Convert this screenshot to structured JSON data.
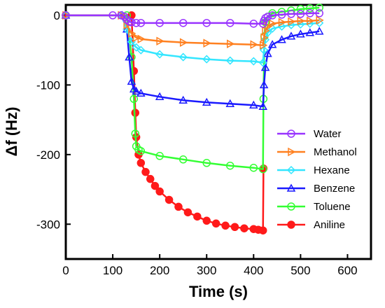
{
  "chart_data": {
    "type": "line",
    "xlabel": "Time (s)",
    "ylabel": "Δf (Hz)",
    "xlim": [
      0,
      650
    ],
    "ylim": [
      -350,
      15
    ],
    "x_ticks": [
      0,
      100,
      200,
      300,
      400,
      500,
      600
    ],
    "y_ticks": [
      0,
      -100,
      -200,
      -300
    ],
    "grid": false,
    "legend_position": "bottom-right",
    "series": [
      {
        "name": "Water",
        "color": "#9933ff",
        "marker": "circle-open",
        "x": [
          0,
          50,
          100,
          118,
          125,
          130,
          135,
          140,
          150,
          160,
          200,
          250,
          300,
          350,
          400,
          420,
          422,
          425,
          430,
          440,
          460,
          480,
          500,
          520,
          540
        ],
        "y": [
          0,
          0,
          0,
          0,
          -2,
          -6,
          -9,
          -10,
          -11,
          -11,
          -11,
          -11,
          -11,
          -11,
          -12,
          -12,
          -8,
          -4,
          -2,
          0,
          1,
          2,
          2,
          3,
          3
        ]
      },
      {
        "name": "Methanol",
        "color": "#ff8020",
        "marker": "triangle-right-open",
        "x": [
          0,
          100,
          118,
          130,
          140,
          150,
          160,
          200,
          250,
          300,
          350,
          400,
          420,
          422,
          425,
          430,
          440,
          460,
          480,
          500,
          520,
          540
        ],
        "y": [
          0,
          0,
          0,
          -14,
          -26,
          -32,
          -34,
          -37,
          -39,
          -40,
          -41,
          -42,
          -43,
          -32,
          -22,
          -16,
          -12,
          -10,
          -9,
          -8,
          -8,
          -7
        ]
      },
      {
        "name": "Hexane",
        "color": "#33e6ff",
        "marker": "diamond-open",
        "x": [
          0,
          100,
          118,
          130,
          140,
          150,
          160,
          200,
          250,
          300,
          350,
          400,
          420,
          422,
          425,
          430,
          440,
          460,
          480,
          500,
          520,
          540
        ],
        "y": [
          0,
          0,
          0,
          -20,
          -38,
          -46,
          -50,
          -56,
          -60,
          -63,
          -65,
          -66,
          -68,
          -50,
          -35,
          -25,
          -19,
          -16,
          -14,
          -13,
          -12,
          -11
        ]
      },
      {
        "name": "Benzene",
        "color": "#1a1aff",
        "marker": "triangle-up-open",
        "x": [
          0,
          100,
          120,
          130,
          135,
          140,
          145,
          150,
          160,
          200,
          250,
          300,
          350,
          400,
          420,
          422,
          425,
          430,
          440,
          460,
          480,
          500,
          520,
          540
        ],
        "y": [
          0,
          0,
          0,
          -20,
          -60,
          -95,
          -106,
          -109,
          -112,
          -117,
          -122,
          -125,
          -127,
          -129,
          -131,
          -100,
          -75,
          -55,
          -42,
          -35,
          -30,
          -27,
          -25,
          -23
        ]
      },
      {
        "name": "Toluene",
        "color": "#33ff33",
        "marker": "circle-open",
        "x": [
          0,
          100,
          130,
          140,
          145,
          148,
          150,
          155,
          160,
          200,
          250,
          300,
          350,
          400,
          420,
          421,
          423,
          425,
          430,
          440,
          460,
          480,
          500,
          520,
          540
        ],
        "y": [
          0,
          0,
          0,
          -60,
          -120,
          -170,
          -188,
          -193,
          -195,
          -202,
          -207,
          -212,
          -216,
          -219,
          -221,
          -120,
          -30,
          -10,
          -2,
          3,
          5,
          7,
          9,
          10,
          11
        ]
      },
      {
        "name": "Aniline",
        "color": "#ff1a1a",
        "marker": "circle-filled",
        "x": [
          0,
          100,
          140,
          145,
          148,
          150,
          155,
          160,
          170,
          180,
          190,
          200,
          220,
          240,
          260,
          280,
          300,
          320,
          340,
          360,
          380,
          400,
          410,
          420,
          421
        ],
        "y": [
          0,
          0,
          0,
          -80,
          -140,
          -175,
          -200,
          -212,
          -225,
          -235,
          -245,
          -253,
          -265,
          -275,
          -283,
          -289,
          -295,
          -299,
          -302,
          -304,
          -306,
          -307,
          -308,
          -309,
          -220
        ]
      }
    ]
  }
}
